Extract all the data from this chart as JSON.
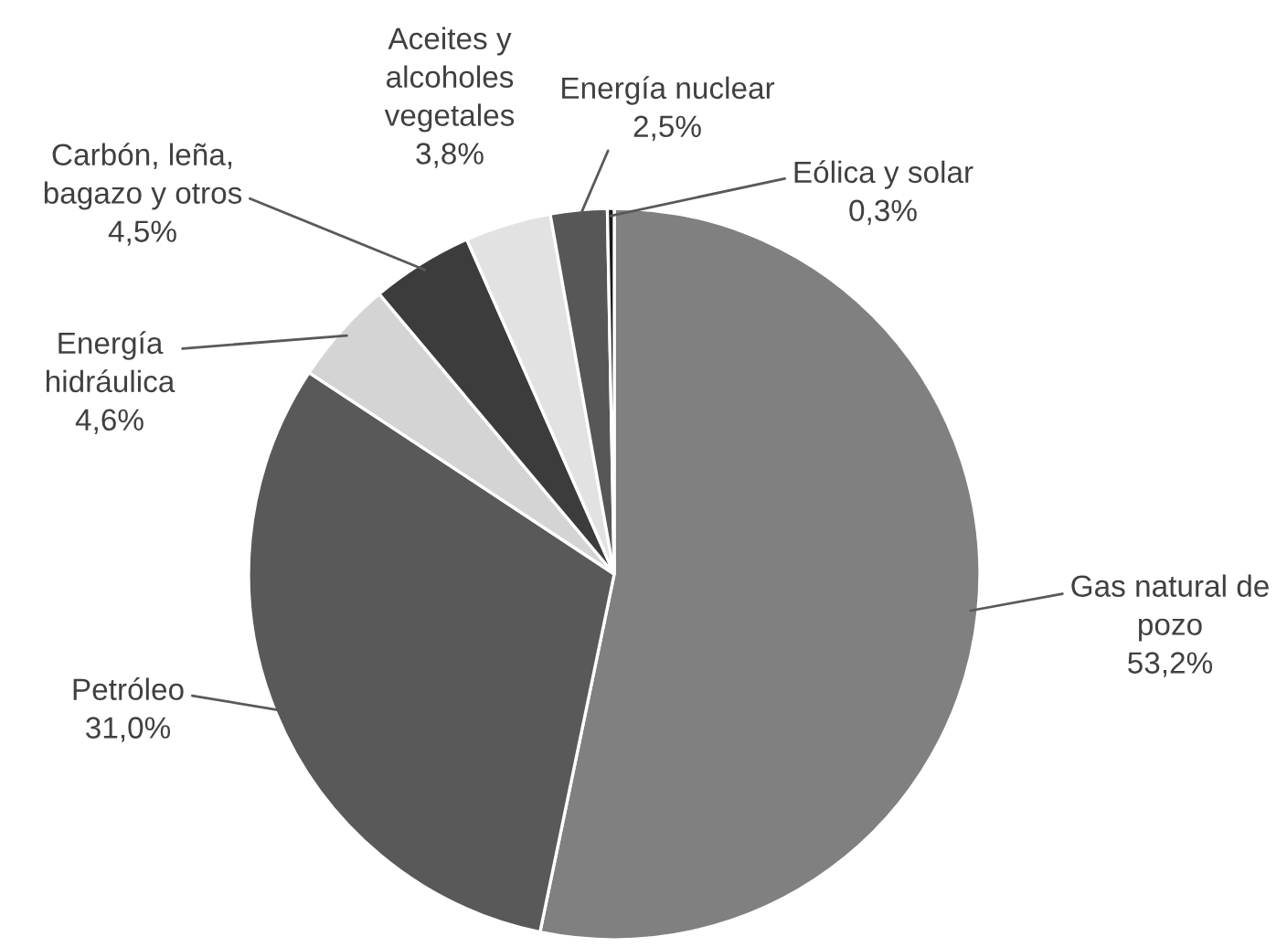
{
  "chart_data": {
    "type": "pie",
    "categories": [
      "Gas natural de\npozo",
      "Petróleo",
      "Energía\nhidráulica",
      "Carbón, leña,\nbagazo y otros",
      "Aceites y\nalcoholes\nvegetales",
      "Energía nuclear",
      "Eólica y solar"
    ],
    "values": [
      53.2,
      31.0,
      4.6,
      4.5,
      3.8,
      2.5,
      0.3
    ],
    "value_labels": [
      "53,2%",
      "31,0%",
      "4,6%",
      "4,5%",
      "3,8%",
      "2,5%",
      "0,3%"
    ],
    "colors": [
      "#808080",
      "#595959",
      "#d4d4d4",
      "#3c3c3c",
      "#e2e2e2",
      "#575757",
      "#1a1a1a"
    ]
  }
}
